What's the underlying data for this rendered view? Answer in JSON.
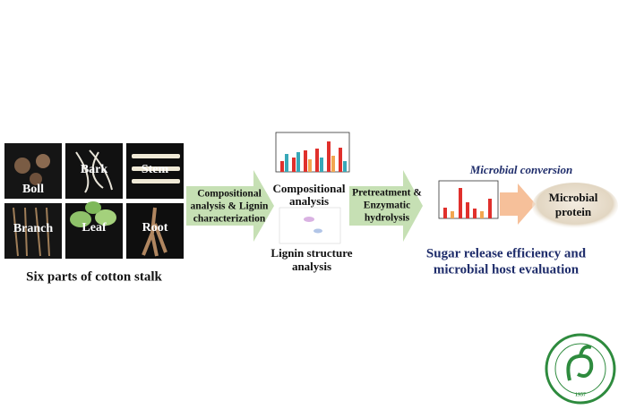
{
  "parts": {
    "tiles": [
      "Boll",
      "Bark",
      "Stem",
      "Branch",
      "Leaf",
      "Root"
    ],
    "caption": "Six parts of cotton stalk"
  },
  "step1": {
    "label": [
      "Compositional",
      "analysis & Lignin",
      "characterization"
    ]
  },
  "analysis": {
    "composition": [
      "Compositional",
      "analysis"
    ],
    "lignin": [
      "Lignin structure",
      "analysis"
    ]
  },
  "step2": {
    "label": [
      "Pretreatment &",
      "Enzymatic",
      "hydrolysis"
    ]
  },
  "conversion": {
    "title": "Microbial conversion",
    "product": [
      "Microbial",
      "protein"
    ],
    "result": [
      "Sugar release efficiency and",
      "microbial host evaluation"
    ]
  },
  "logo": {
    "year": "1957"
  }
}
